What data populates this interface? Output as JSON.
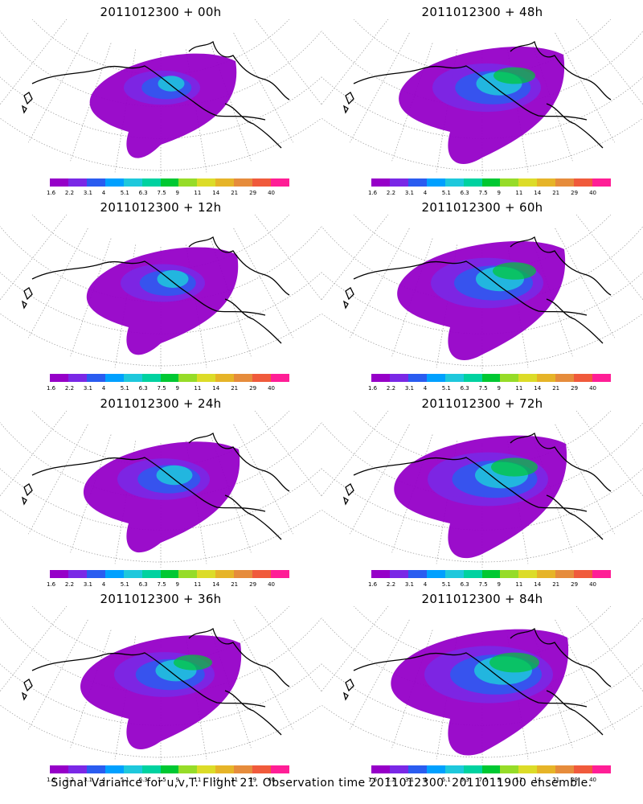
{
  "panels": [
    {
      "title": "2011012300 + 00h",
      "intensity": 0.15
    },
    {
      "title": "2011012300 + 48h",
      "intensity": 0.55
    },
    {
      "title": "2011012300 + 12h",
      "intensity": 0.25
    },
    {
      "title": "2011012300 + 60h",
      "intensity": 0.6
    },
    {
      "title": "2011012300 + 24h",
      "intensity": 0.35
    },
    {
      "title": "2011012300 + 72h",
      "intensity": 0.7
    },
    {
      "title": "2011012300 + 36h",
      "intensity": 0.45
    },
    {
      "title": "2011012300 + 84h",
      "intensity": 0.8
    }
  ],
  "colorbar": {
    "colors": [
      "#9600c8",
      "#7a28e6",
      "#2a5cf0",
      "#00a0ff",
      "#1ec8dc",
      "#00d2a0",
      "#00c832",
      "#96dc28",
      "#dcdc28",
      "#e6b428",
      "#e68c3c",
      "#f05a3c",
      "#ff1e96"
    ],
    "labels": [
      "1.6",
      "2.2",
      "3.1",
      "4",
      "5.1",
      "6.3",
      "7.5",
      "9",
      "11",
      "14",
      "21",
      "29",
      "40"
    ]
  },
  "caption": "Signal Variance for u,v,T. Flight 21. Observation time 2011012300. 2011011900 ensemble."
}
